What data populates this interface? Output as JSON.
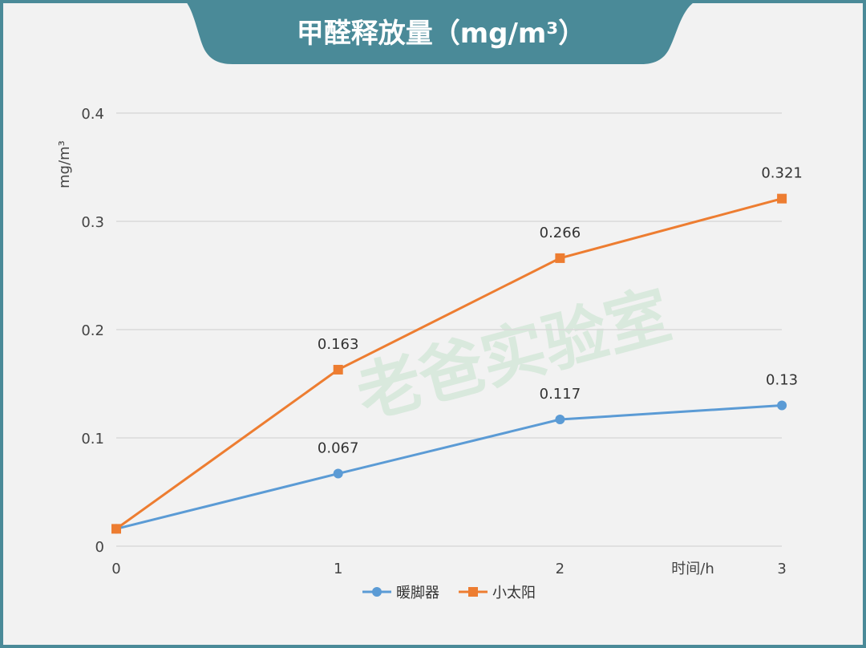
{
  "title": "甲醛释放量（mg/m³）",
  "watermark": "老爸实验室",
  "chart_data": {
    "type": "line",
    "title": "甲醛释放量（mg/m³）",
    "xlabel": "时间/h",
    "ylabel": "mg/m³",
    "x": [
      0,
      1,
      2,
      3
    ],
    "xticks": [
      "0",
      "1",
      "2",
      "3"
    ],
    "yticks": [
      "0",
      "0.1",
      "0.2",
      "0.3",
      "0.4"
    ],
    "ylim": [
      0,
      0.4
    ],
    "grid": true,
    "legend": "bottom",
    "series": [
      {
        "name": "暖脚器",
        "values": [
          0.016,
          0.067,
          0.117,
          0.13
        ],
        "labels": [
          "",
          "0.067",
          "0.117",
          "0.13"
        ],
        "color": "#5b9bd5",
        "marker": "circle"
      },
      {
        "name": "小太阳",
        "values": [
          0.016,
          0.163,
          0.266,
          0.321
        ],
        "labels": [
          "",
          "0.163",
          "0.266",
          "0.321"
        ],
        "color": "#ed7d31",
        "marker": "square"
      }
    ]
  }
}
